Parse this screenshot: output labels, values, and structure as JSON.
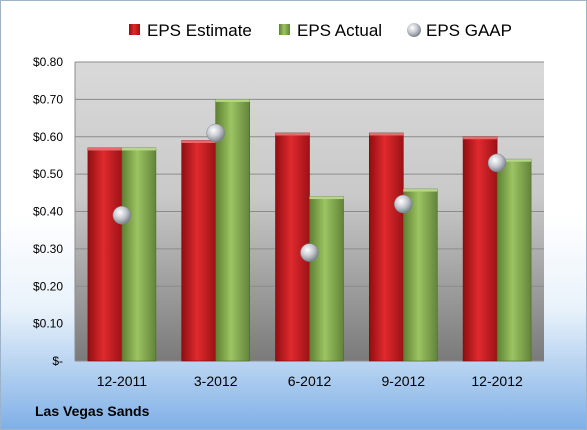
{
  "chart_data": {
    "type": "bar",
    "categories": [
      "12-2011",
      "3-2012",
      "6-2012",
      "9-2012",
      "12-2012"
    ],
    "series": [
      {
        "name": "EPS Estimate",
        "kind": "bar",
        "color": "#c0171c",
        "values": [
          0.57,
          0.59,
          0.61,
          0.61,
          0.6
        ]
      },
      {
        "name": "EPS Actual",
        "kind": "bar",
        "color": "#7fa64a",
        "values": [
          0.57,
          0.7,
          0.44,
          0.46,
          0.54
        ]
      },
      {
        "name": "EPS GAAP",
        "kind": "marker",
        "color": "#b8bcc4",
        "values": [
          0.39,
          0.61,
          0.29,
          0.42,
          0.53
        ]
      }
    ],
    "yticks": [
      "$-",
      "$0.10",
      "$0.20",
      "$0.30",
      "$0.40",
      "$0.50",
      "$0.60",
      "$0.70",
      "$0.80"
    ],
    "ylim": [
      0,
      0.8
    ],
    "grid": true,
    "legend_position": "top"
  },
  "footer": {
    "company": "Las Vegas Sands"
  }
}
